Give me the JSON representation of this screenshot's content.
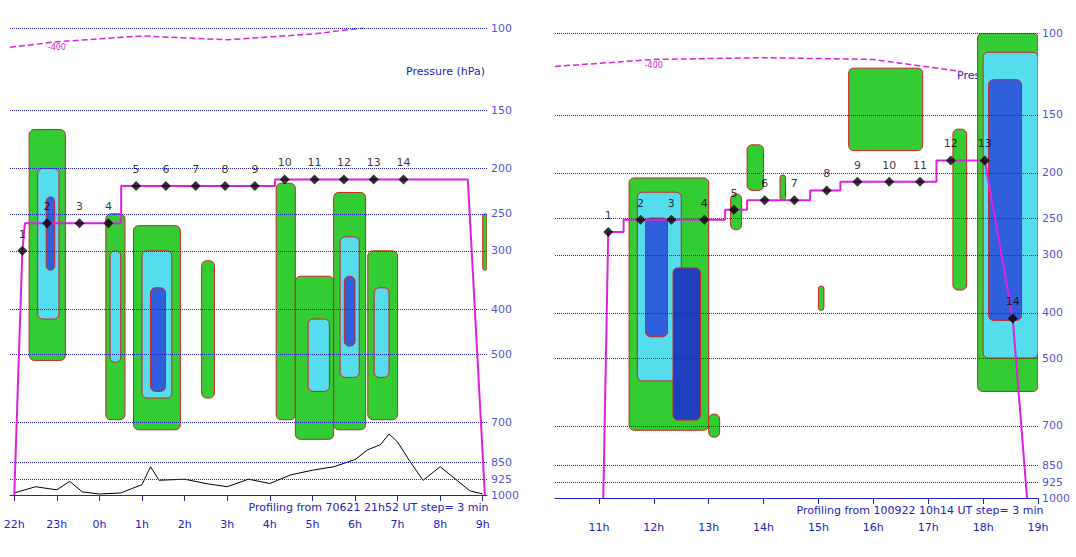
{
  "chart_data": [
    {
      "type": "line",
      "caption": "Profiling from 70621 21h52 UT step= 3 min",
      "y_label": "Pressure (hPa)",
      "log": "y",
      "grid": true,
      "xlim": [
        21.9,
        33.1
      ],
      "xticks": [
        {
          "value": 22,
          "label": "22h"
        },
        {
          "value": 23,
          "label": "23h"
        },
        {
          "value": 24,
          "label": "0h"
        },
        {
          "value": 25,
          "label": "1h"
        },
        {
          "value": 26,
          "label": "2h"
        },
        {
          "value": 27,
          "label": "3h"
        },
        {
          "value": 28,
          "label": "4h"
        },
        {
          "value": 29,
          "label": "5h"
        },
        {
          "value": 30,
          "label": "6h"
        },
        {
          "value": 31,
          "label": "7h"
        },
        {
          "value": 32,
          "label": "8h"
        },
        {
          "value": 33,
          "label": "9h"
        }
      ],
      "ylim": [
        100,
        1000
      ],
      "yticks": [
        100,
        150,
        200,
        250,
        300,
        400,
        500,
        700,
        850,
        925,
        1000
      ],
      "track": {
        "color": "#dd22dd",
        "x": [
          22.0,
          22.19,
          22.25,
          24.51,
          24.51,
          28.12,
          28.12,
          32.65,
          33.05
        ],
        "values": [
          1000,
          300,
          262,
          262,
          218,
          218,
          211,
          211,
          1000
        ]
      },
      "waypoints": {
        "marker": "diamond",
        "color": "#000000",
        "labels": [
          1,
          2,
          3,
          4,
          5,
          6,
          7,
          8,
          9,
          10,
          11,
          12,
          13,
          14
        ],
        "x": [
          22.19,
          22.77,
          23.53,
          24.21,
          24.86,
          25.56,
          26.26,
          26.95,
          27.65,
          28.35,
          29.05,
          29.74,
          30.44,
          31.14
        ],
        "values": [
          300,
          262,
          262,
          262,
          218,
          218,
          218,
          218,
          218,
          211,
          211,
          211,
          211,
          211
        ]
      },
      "terrain": {
        "color": "#000000",
        "x": [
          22.0,
          22.5,
          23.0,
          23.3,
          23.6,
          24.0,
          24.5,
          25.0,
          25.2,
          25.4,
          26.0,
          26.5,
          27.0,
          27.5,
          28.0,
          28.5,
          29.0,
          29.5,
          30.0,
          30.3,
          30.6,
          30.8,
          31.0,
          31.3,
          31.6,
          32.0,
          32.3,
          32.7,
          33.0
        ],
        "values": [
          990,
          960,
          975,
          935,
          985,
          995,
          990,
          950,
          870,
          930,
          925,
          945,
          960,
          925,
          945,
          905,
          885,
          870,
          840,
          800,
          780,
          740,
          770,
          850,
          930,
          870,
          915,
          980,
          995
        ]
      },
      "contour": {
        "label": "-400",
        "color": "#dd22dd",
        "line_style": "dashed",
        "x": [
          21.9,
          23.0,
          25.0,
          27.0,
          29.0,
          30.2
        ],
        "values": [
          110,
          107,
          104,
          106,
          103,
          100
        ]
      },
      "clouds": [
        {
          "x": [
            22.35,
            23.2
          ],
          "p": [
            165,
            515
          ],
          "color": "#33cc33"
        },
        {
          "x": [
            22.55,
            23.05
          ],
          "p": [
            200,
            420
          ],
          "color": "#55ddee"
        },
        {
          "x": [
            22.75,
            22.95
          ],
          "p": [
            230,
            330
          ],
          "color": "#2f5fdd"
        },
        {
          "x": [
            24.15,
            24.6
          ],
          "p": [
            250,
            690
          ],
          "color": "#33cc33"
        },
        {
          "x": [
            24.25,
            24.5
          ],
          "p": [
            300,
            520
          ],
          "color": "#55ddee"
        },
        {
          "x": [
            24.8,
            25.9
          ],
          "p": [
            265,
            725
          ],
          "color": "#33cc33"
        },
        {
          "x": [
            25.0,
            25.7
          ],
          "p": [
            300,
            620
          ],
          "color": "#55ddee"
        },
        {
          "x": [
            25.2,
            25.55
          ],
          "p": [
            360,
            600
          ],
          "color": "#2f5fdd"
        },
        {
          "x": [
            26.4,
            26.7
          ],
          "p": [
            315,
            620
          ],
          "color": "#33cc33"
        },
        {
          "x": [
            28.15,
            28.6
          ],
          "p": [
            215,
            690
          ],
          "color": "#33cc33"
        },
        {
          "x": [
            28.6,
            29.5
          ],
          "p": [
            340,
            760
          ],
          "color": "#33cc33"
        },
        {
          "x": [
            28.9,
            29.4
          ],
          "p": [
            420,
            600
          ],
          "color": "#55ddee"
        },
        {
          "x": [
            29.5,
            30.25
          ],
          "p": [
            225,
            725
          ],
          "color": "#33cc33"
        },
        {
          "x": [
            29.65,
            30.1
          ],
          "p": [
            280,
            560
          ],
          "color": "#55ddee"
        },
        {
          "x": [
            29.75,
            30.0
          ],
          "p": [
            340,
            480
          ],
          "color": "#2f5fdd"
        },
        {
          "x": [
            30.3,
            31.0
          ],
          "p": [
            300,
            690
          ],
          "color": "#33cc33"
        },
        {
          "x": [
            30.45,
            30.8
          ],
          "p": [
            360,
            560
          ],
          "color": "#55ddee"
        },
        {
          "x": [
            33.0,
            33.1
          ],
          "p": [
            250,
            330
          ],
          "color": "#33cc33"
        }
      ]
    },
    {
      "type": "line",
      "caption": "Profiling from 100922 10h14 UT step= 3 min",
      "y_label": "Pressure (hPa)",
      "log": "y",
      "grid": true,
      "xlim": [
        10.2,
        19.0
      ],
      "xticks": [
        {
          "value": 11,
          "label": "11h"
        },
        {
          "value": 12,
          "label": "12h"
        },
        {
          "value": 13,
          "label": "13h"
        },
        {
          "value": 14,
          "label": "14h"
        },
        {
          "value": 15,
          "label": "15h"
        },
        {
          "value": 16,
          "label": "16h"
        },
        {
          "value": 17,
          "label": "17h"
        },
        {
          "value": 18,
          "label": "18h"
        },
        {
          "value": 19,
          "label": "19h"
        }
      ],
      "ylim": [
        100,
        1000
      ],
      "yticks": [
        100,
        150,
        200,
        250,
        300,
        400,
        500,
        700,
        850,
        925,
        1000
      ],
      "track": {
        "color": "#dd22dd",
        "x": [
          11.08,
          11.17,
          11.45,
          11.45,
          13.3,
          13.3,
          13.7,
          13.7,
          14.85,
          14.85,
          15.4,
          15.4,
          17.15,
          17.15,
          18.03,
          18.54,
          18.8
        ],
        "values": [
          1000,
          268,
          268,
          252,
          252,
          240,
          240,
          229,
          229,
          218,
          218,
          209,
          209,
          188,
          188,
          411,
          1000
        ]
      },
      "waypoints": {
        "marker": "diamond",
        "color": "#000000",
        "labels": [
          1,
          2,
          3,
          4,
          5,
          6,
          7,
          8,
          9,
          10,
          11,
          12,
          13,
          14
        ],
        "x": [
          11.17,
          11.76,
          12.32,
          12.92,
          13.46,
          14.02,
          14.56,
          15.15,
          15.71,
          16.29,
          16.85,
          17.41,
          18.03,
          18.54
        ],
        "values": [
          268,
          252,
          252,
          252,
          240,
          229,
          229,
          218,
          209,
          209,
          209,
          188,
          188,
          411
        ]
      },
      "contour": {
        "label": "-400",
        "color": "#dd22dd",
        "line_style": "dashed",
        "x": [
          10.2,
          12.0,
          14.0,
          16.0,
          17.6
        ],
        "values": [
          118,
          114,
          113,
          114,
          121
        ]
      },
      "clouds": [
        {
          "x": [
            11.55,
            13.0
          ],
          "p": [
            205,
            715
          ],
          "color": "#33cc33"
        },
        {
          "x": [
            11.7,
            12.5
          ],
          "p": [
            220,
            560
          ],
          "color": "#55ddee"
        },
        {
          "x": [
            11.85,
            12.25
          ],
          "p": [
            250,
            450
          ],
          "color": "#2f5fdd"
        },
        {
          "x": [
            12.35,
            12.85
          ],
          "p": [
            320,
            680
          ],
          "color": "#1f3fbf"
        },
        {
          "x": [
            13.0,
            13.2
          ],
          "p": [
            660,
            740
          ],
          "color": "#33cc33"
        },
        {
          "x": [
            13.4,
            13.6
          ],
          "p": [
            222,
            265
          ],
          "color": "#33cc33"
        },
        {
          "x": [
            13.7,
            14.0
          ],
          "p": [
            174,
            218
          ],
          "color": "#33cc33"
        },
        {
          "x": [
            14.3,
            14.4
          ],
          "p": [
            202,
            229
          ],
          "color": "#33cc33"
        },
        {
          "x": [
            15.0,
            15.1
          ],
          "p": [
            350,
            395
          ],
          "color": "#33cc33"
        },
        {
          "x": [
            15.55,
            16.9
          ],
          "p": [
            119,
            179
          ],
          "color": "#33cc33"
        },
        {
          "x": [
            17.45,
            17.7
          ],
          "p": [
            161,
            357
          ],
          "color": "#33cc33"
        },
        {
          "x": [
            17.9,
            19.0
          ],
          "p": [
            100,
            590
          ],
          "color": "#33cc33"
        },
        {
          "x": [
            18.0,
            19.0
          ],
          "p": [
            110,
            500
          ],
          "color": "#55ddee"
        },
        {
          "x": [
            18.1,
            18.7
          ],
          "p": [
            126,
            415
          ],
          "color": "#2f5fdd"
        }
      ]
    }
  ]
}
